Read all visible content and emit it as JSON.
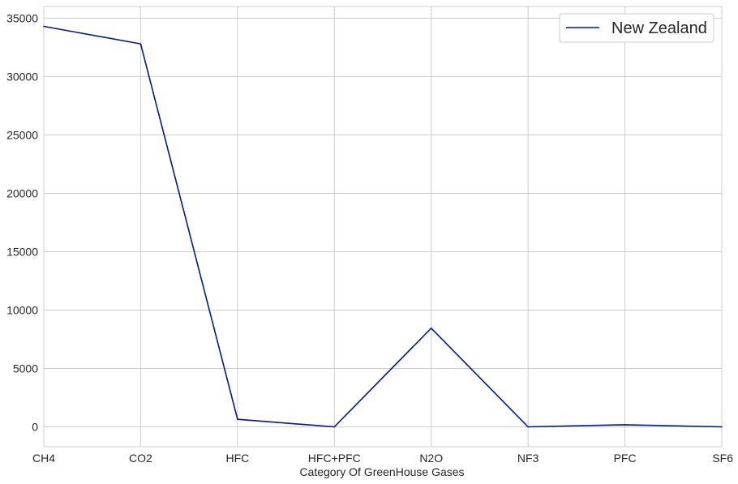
{
  "chart_data": {
    "type": "line",
    "categories": [
      "CH4",
      "CO2",
      "HFC",
      "HFC+PFC",
      "N2O",
      "NF3",
      "PFC",
      "SF6"
    ],
    "series": [
      {
        "name": "New Zealand",
        "values": [
          34300,
          32800,
          650,
          0,
          8450,
          0,
          180,
          0
        ],
        "color": "#001c7f"
      }
    ],
    "xlabel": "Category Of GreenHouse Gases",
    "ylabel": "",
    "ylim": [
      -1700,
      36000
    ],
    "yticks": [
      0,
      5000,
      10000,
      15000,
      20000,
      25000,
      30000,
      35000
    ],
    "grid": true,
    "legend_position": "top-right",
    "colors": {
      "grid": "#cccccc",
      "spine": "#cccccc",
      "text": "#262626"
    }
  }
}
